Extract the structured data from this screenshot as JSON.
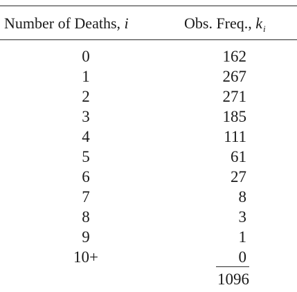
{
  "table": {
    "header": {
      "col1_text": "Number of Deaths, ",
      "col1_var": "i",
      "col2_text": "Obs. Freq., ",
      "col2_var": "k",
      "col2_sub": "i"
    },
    "rows": [
      {
        "deaths": "0",
        "freq": "162"
      },
      {
        "deaths": "1",
        "freq": "267"
      },
      {
        "deaths": "2",
        "freq": "271"
      },
      {
        "deaths": "3",
        "freq": "185"
      },
      {
        "deaths": "4",
        "freq": "111"
      },
      {
        "deaths": "5",
        "freq": "61"
      },
      {
        "deaths": "6",
        "freq": "27"
      },
      {
        "deaths": "7",
        "freq": "8"
      },
      {
        "deaths": "8",
        "freq": "3"
      },
      {
        "deaths": "9",
        "freq": "1"
      },
      {
        "deaths": "10+",
        "freq": "0"
      }
    ],
    "total": "1096"
  }
}
